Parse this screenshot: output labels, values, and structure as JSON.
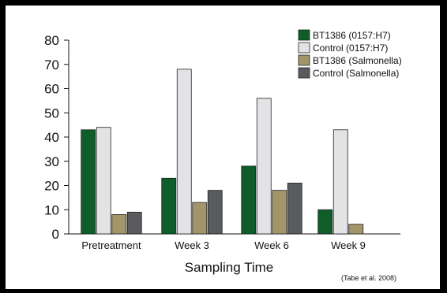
{
  "chart_data": {
    "type": "bar",
    "categories": [
      "Pretreatment",
      "Week 3",
      "Week 6",
      "Week 9"
    ],
    "series": [
      {
        "name": "BT1386 (0157:H7)",
        "color": "#0f5e2a",
        "values": [
          43,
          23,
          28,
          10
        ]
      },
      {
        "name": "Control (0157:H7)",
        "color": "#e3e3e5",
        "values": [
          44,
          68,
          56,
          43
        ]
      },
      {
        "name": "BT1386 (Salmonella)",
        "color": "#a2956a",
        "values": [
          8,
          13,
          18,
          4
        ]
      },
      {
        "name": "Control (Salmonella)",
        "color": "#5a5b5e",
        "values": [
          9,
          18,
          21,
          null
        ]
      }
    ],
    "xlabel": "Sampling Time",
    "ylabel": "",
    "ylim": [
      0,
      80
    ],
    "yticks": [
      0,
      10,
      20,
      30,
      40,
      50,
      60,
      70,
      80
    ],
    "legend_position": "top-right",
    "grid": false,
    "citation": "(Tabe et al. 2008)"
  }
}
